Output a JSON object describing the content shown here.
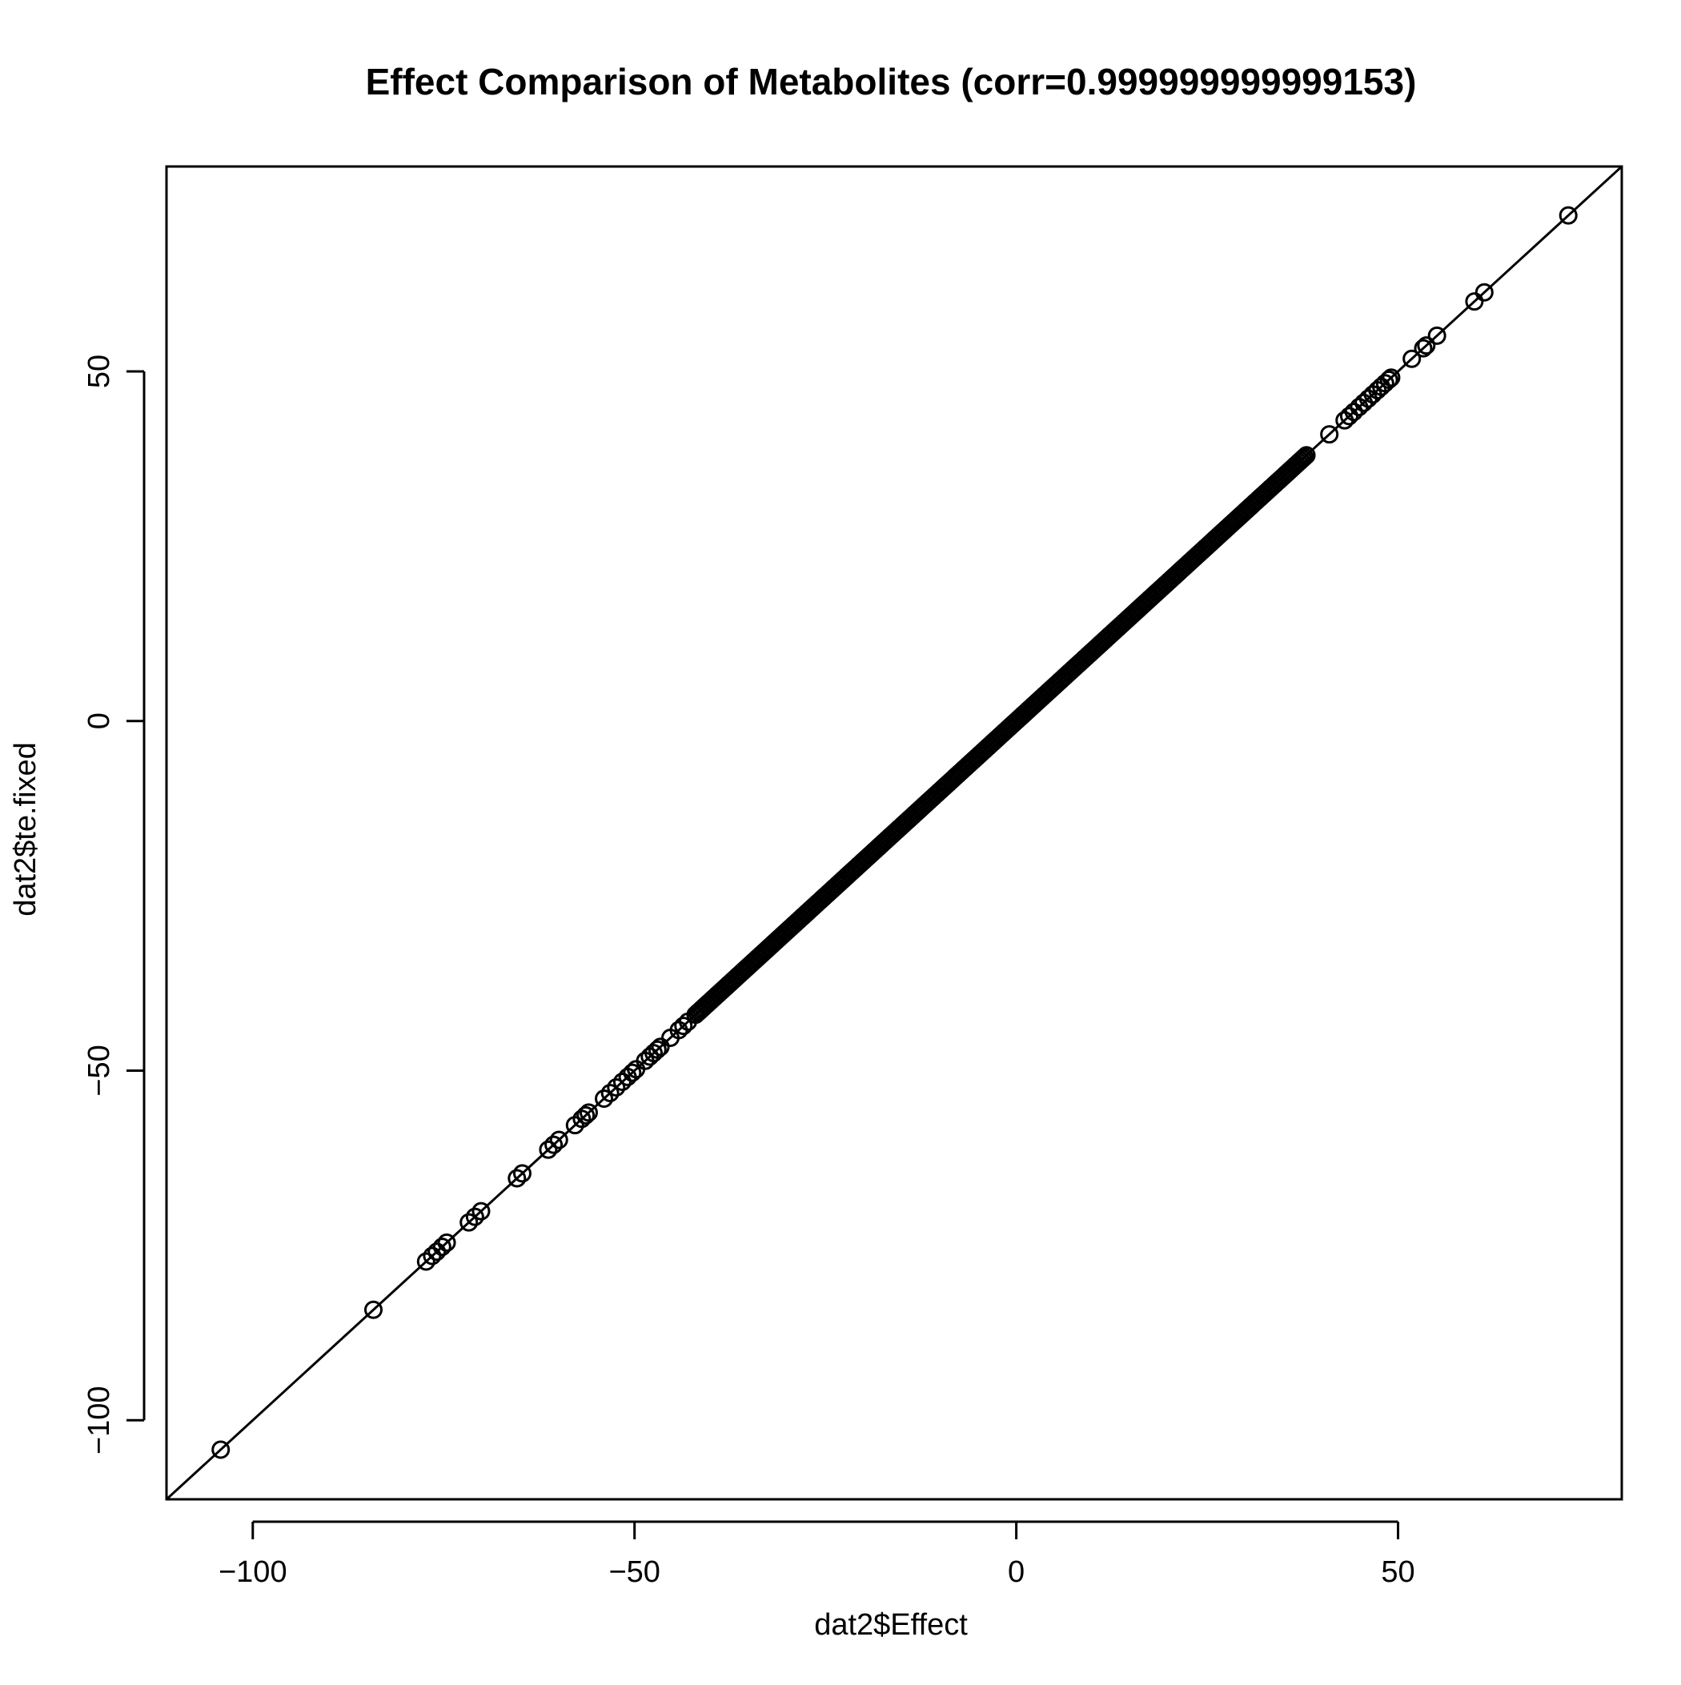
{
  "chart_data": {
    "type": "scatter",
    "title": "Effect Comparison of Metabolites (corr=0.999999999999153)",
    "xlabel": "dat2$Effect",
    "ylabel": "dat2$te.fixed",
    "xlim": [
      -111.3,
      79.3
    ],
    "ylim": [
      -111.3,
      79.3
    ],
    "x_ticks": [
      -100,
      -50,
      0,
      50
    ],
    "x_tick_labels": [
      "−100",
      "−50",
      "0",
      "50"
    ],
    "y_ticks": [
      -100,
      -50,
      0,
      50
    ],
    "y_tick_labels": [
      "−100",
      "−50",
      "0",
      "50"
    ],
    "grid": false,
    "legend": "none",
    "reference_line": {
      "intercept": 0,
      "slope": 1
    },
    "marker": "open-circle",
    "color": "#000000",
    "dense_range": [
      -42,
      38
    ],
    "dense_count": 320,
    "points": [
      [
        -104.2,
        -104.2
      ],
      [
        -84.2,
        -84.2
      ],
      [
        -77.3,
        -77.3
      ],
      [
        -76.5,
        -76.5
      ],
      [
        -75.9,
        -75.9
      ],
      [
        -75.2,
        -75.2
      ],
      [
        -74.6,
        -74.6
      ],
      [
        -71.7,
        -71.7
      ],
      [
        -70.9,
        -70.9
      ],
      [
        -70.1,
        -70.1
      ],
      [
        -65.4,
        -65.4
      ],
      [
        -64.7,
        -64.7
      ],
      [
        -61.3,
        -61.3
      ],
      [
        -60.6,
        -60.6
      ],
      [
        -59.9,
        -59.9
      ],
      [
        -57.8,
        -57.8
      ],
      [
        -56.9,
        -56.9
      ],
      [
        -56.4,
        -56.4
      ],
      [
        -56.0,
        -56.0
      ],
      [
        -54.0,
        -54.0
      ],
      [
        -53.2,
        -53.2
      ],
      [
        -52.4,
        -52.4
      ],
      [
        -51.6,
        -51.6
      ],
      [
        -50.9,
        -50.9
      ],
      [
        -50.3,
        -50.3
      ],
      [
        -49.8,
        -49.8
      ],
      [
        -48.6,
        -48.6
      ],
      [
        -48.0,
        -48.0
      ],
      [
        -47.5,
        -47.5
      ],
      [
        -47.0,
        -47.0
      ],
      [
        -46.6,
        -46.6
      ],
      [
        -45.3,
        -45.3
      ],
      [
        -44.2,
        -44.2
      ],
      [
        -43.6,
        -43.6
      ],
      [
        -43.0,
        -43.0
      ],
      [
        41.0,
        41.0
      ],
      [
        43.0,
        43.0
      ],
      [
        43.6,
        43.6
      ],
      [
        44.2,
        44.2
      ],
      [
        44.9,
        44.9
      ],
      [
        45.5,
        45.5
      ],
      [
        46.1,
        46.1
      ],
      [
        46.7,
        46.7
      ],
      [
        47.3,
        47.3
      ],
      [
        47.8,
        47.8
      ],
      [
        48.3,
        48.3
      ],
      [
        48.8,
        48.8
      ],
      [
        49.1,
        49.1
      ],
      [
        51.8,
        51.8
      ],
      [
        53.3,
        53.3
      ],
      [
        53.7,
        53.7
      ],
      [
        55.1,
        55.1
      ],
      [
        60.0,
        60.0
      ],
      [
        61.3,
        61.3
      ],
      [
        72.3,
        72.3
      ]
    ]
  }
}
